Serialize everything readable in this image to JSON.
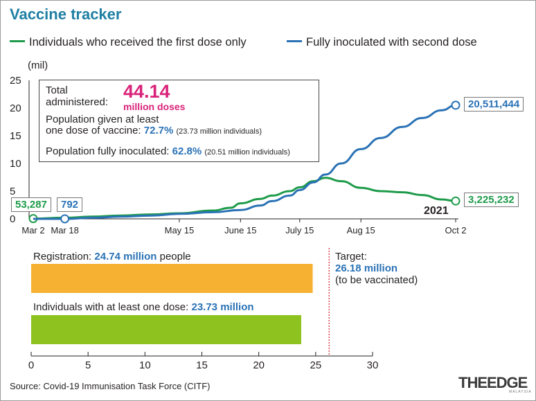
{
  "title": "Vaccine tracker",
  "chart_data": [
    {
      "type": "line",
      "ylabel": "(mil)",
      "ylim": [
        0,
        25
      ],
      "yticks": [
        "0",
        "5",
        "10",
        "15",
        "20",
        "25"
      ],
      "xticks": [
        "Mar 2",
        "Mar 18",
        "May 15",
        "June 15",
        "July 15",
        "Aug 15",
        "Oct 2"
      ],
      "year_label": "2021",
      "series": [
        {
          "name": "Individuals who received the first dose only",
          "color": "#1e9b4a",
          "x": [
            "2021-03-02",
            "2021-03-18",
            "2021-04-01",
            "2021-04-15",
            "2021-05-01",
            "2021-05-15",
            "2021-06-01",
            "2021-06-10",
            "2021-06-15",
            "2021-06-25",
            "2021-07-01",
            "2021-07-10",
            "2021-07-15",
            "2021-07-22",
            "2021-07-28",
            "2021-08-05",
            "2021-08-15",
            "2021-08-25",
            "2021-09-05",
            "2021-09-15",
            "2021-09-25",
            "2021-10-02"
          ],
          "values": [
            0.05,
            0.2,
            0.4,
            0.6,
            0.8,
            1.0,
            1.5,
            2.0,
            2.8,
            3.6,
            4.2,
            5.0,
            5.7,
            6.8,
            7.4,
            6.8,
            5.6,
            5.0,
            4.8,
            4.3,
            3.5,
            3.225232
          ],
          "end_label": "3,225,232",
          "start_label": "53,287"
        },
        {
          "name": "Fully inoculated with second dose",
          "color": "#2a72b5",
          "x": [
            "2021-03-02",
            "2021-03-18",
            "2021-04-01",
            "2021-04-15",
            "2021-05-01",
            "2021-05-15",
            "2021-06-01",
            "2021-06-15",
            "2021-06-25",
            "2021-07-01",
            "2021-07-10",
            "2021-07-15",
            "2021-07-22",
            "2021-07-28",
            "2021-08-05",
            "2021-08-15",
            "2021-08-25",
            "2021-09-05",
            "2021-09-15",
            "2021-09-25",
            "2021-10-02"
          ],
          "values": [
            0.0,
            0.0008,
            0.2,
            0.4,
            0.6,
            0.9,
            1.2,
            1.6,
            2.4,
            3.2,
            4.2,
            5.2,
            6.6,
            8.0,
            10.0,
            12.6,
            14.6,
            16.6,
            18.2,
            19.6,
            20.511444
          ],
          "end_label": "20,511,444",
          "start_label": "792"
        }
      ]
    },
    {
      "type": "bar",
      "orientation": "horizontal",
      "xlim": [
        0,
        30
      ],
      "xticks": [
        "0",
        "5",
        "10",
        "15",
        "20",
        "25",
        "30"
      ],
      "categories": [
        "Registration",
        "Individuals with at least one dose"
      ],
      "values": [
        24.74,
        23.73
      ],
      "colors": [
        "#f6b133",
        "#8dc21f"
      ],
      "target_value": 26.18
    }
  ],
  "infobox": {
    "total_label_1": "Total",
    "total_label_2": "administered:",
    "total_value": "44.14",
    "total_unit": "million doses",
    "pop_label_1": "Population given at least",
    "pop_label_2": "one dose of vaccine:",
    "pop_pct": "72.7%",
    "pop_detail": "(23.73 million individuals)",
    "full_label": "Population fully inoculated:",
    "full_pct": "62.8%",
    "full_detail": "(20.51 million individuals)"
  },
  "bars_text": {
    "reg_prefix": "Registration:",
    "reg_value": "24.74 million",
    "reg_suffix": "people",
    "dose_prefix": "Individuals with at least one dose:",
    "dose_value": "23.73 million",
    "target_label": "Target:",
    "target_value": "26.18 million",
    "target_note": "(to be vaccinated)"
  },
  "source": "Source: Covid-19 Immunisation Task Force (CITF)",
  "logo": "THEEDGE",
  "logo_sub": "MALAYSIA"
}
